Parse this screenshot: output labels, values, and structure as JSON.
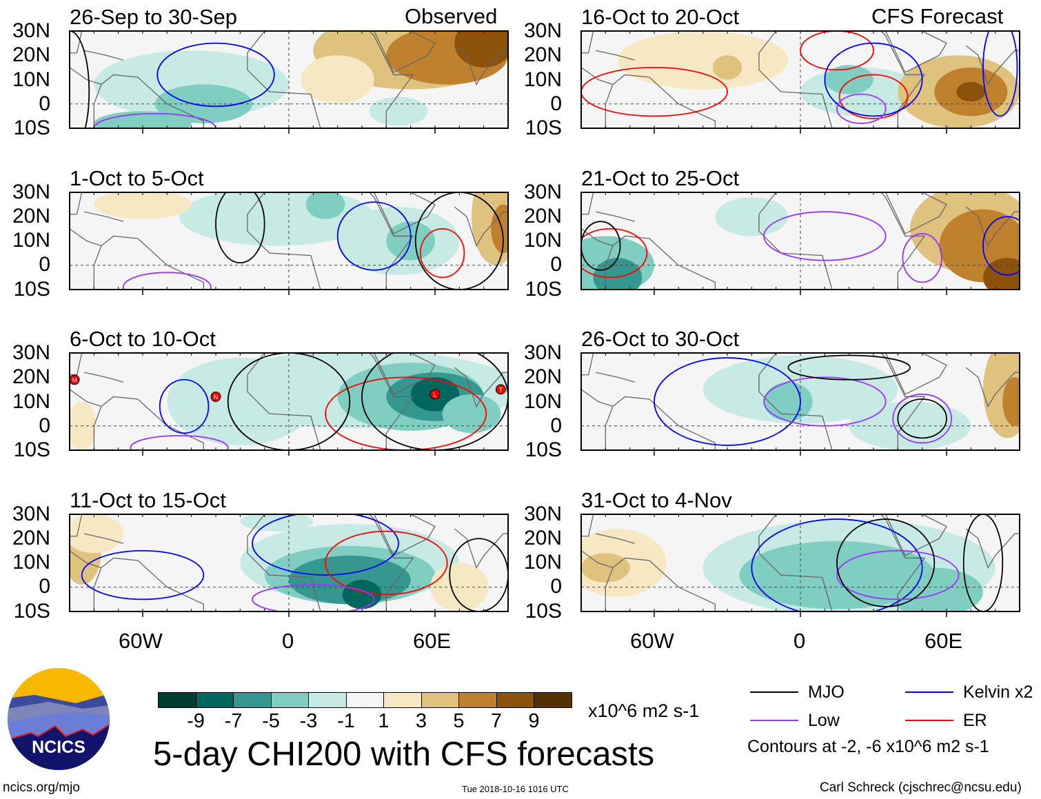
{
  "header": {
    "observed_label": "Observed",
    "forecast_label": "CFS Forecast"
  },
  "chart_data": {
    "type": "heatmap",
    "title": "5-day CHI200 with CFS forecasts",
    "units": "x10^6 m2 s-1",
    "lat_ticks": [
      "30N",
      "20N",
      "10N",
      "0",
      "10S"
    ],
    "lon_ticks": [
      "60W",
      "0",
      "60E"
    ],
    "lon_range": [
      -90,
      90
    ],
    "lat_range": [
      -10,
      30
    ],
    "colorbar": {
      "labels": [
        "-9",
        "-7",
        "-5",
        "-3",
        "-1",
        "1",
        "3",
        "5",
        "7",
        "9"
      ],
      "colors": [
        "#003c30",
        "#01665e",
        "#35978f",
        "#80cdc1",
        "#c7eae5",
        "#f5f5f5",
        "#f6e8c3",
        "#dfc27d",
        "#bf812d",
        "#8c510a",
        "#543005"
      ]
    },
    "panels": [
      {
        "title": "26-Sep to 30-Sep",
        "col": 0,
        "row": 0,
        "anoms": [
          [
            -40,
            8,
            40,
            14,
            -2
          ],
          [
            -35,
            0,
            20,
            8,
            -4
          ],
          [
            -60,
            -8,
            20,
            5,
            -4
          ],
          [
            50,
            22,
            40,
            16,
            4
          ],
          [
            65,
            20,
            25,
            12,
            6
          ],
          [
            80,
            25,
            12,
            10,
            8
          ],
          [
            20,
            10,
            15,
            10,
            2
          ],
          [
            45,
            -3,
            12,
            6,
            -2
          ]
        ],
        "contours": [
          [
            "Kelvin",
            -30,
            12,
            24,
            13
          ],
          [
            "Low",
            -55,
            -10,
            25,
            6
          ],
          [
            "MJO",
            -90,
            5,
            8,
            25
          ]
        ],
        "storms": []
      },
      {
        "title": "1-Oct to 5-Oct",
        "col": 0,
        "row": 1,
        "anoms": [
          [
            -5,
            20,
            40,
            12,
            -2
          ],
          [
            15,
            25,
            8,
            6,
            -4
          ],
          [
            45,
            10,
            25,
            14,
            -2
          ],
          [
            50,
            10,
            10,
            8,
            -4
          ],
          [
            85,
            20,
            10,
            20,
            4
          ],
          [
            88,
            15,
            5,
            10,
            6
          ],
          [
            -60,
            25,
            20,
            6,
            2
          ]
        ],
        "contours": [
          [
            "Kelvin",
            35,
            12,
            15,
            14
          ],
          [
            "ER",
            63,
            5,
            9,
            10
          ],
          [
            "MJO",
            -20,
            17,
            10,
            16
          ],
          [
            "MJO",
            70,
            10,
            18,
            20
          ],
          [
            "Low",
            -50,
            -9,
            18,
            6
          ]
        ],
        "storms": []
      },
      {
        "title": "6-Oct to 10-Oct",
        "col": 0,
        "row": 2,
        "anoms": [
          [
            -20,
            10,
            30,
            18,
            -2
          ],
          [
            30,
            15,
            65,
            16,
            -2
          ],
          [
            50,
            12,
            30,
            14,
            -4
          ],
          [
            60,
            12,
            20,
            10,
            -6
          ],
          [
            60,
            13,
            10,
            7,
            -8
          ],
          [
            75,
            5,
            12,
            8,
            -4
          ],
          [
            -85,
            0,
            6,
            10,
            2
          ]
        ],
        "contours": [
          [
            "Kelvin",
            -43,
            8,
            10,
            11
          ],
          [
            "ER",
            48,
            5,
            33,
            15
          ],
          [
            "MJO",
            0,
            10,
            25,
            20
          ],
          [
            "MJO",
            60,
            12,
            30,
            22
          ],
          [
            "Low",
            -45,
            -9,
            20,
            5
          ]
        ],
        "storms": [
          [
            "M",
            -88,
            19
          ],
          [
            "N",
            -30,
            12
          ],
          [
            "L",
            60,
            13
          ],
          [
            "T",
            87,
            15
          ]
        ]
      },
      {
        "title": "11-Oct to 15-Oct",
        "col": 0,
        "row": 3,
        "anoms": [
          [
            25,
            10,
            45,
            16,
            -2
          ],
          [
            25,
            5,
            35,
            12,
            -4
          ],
          [
            25,
            3,
            25,
            10,
            -6
          ],
          [
            30,
            -3,
            8,
            6,
            -8
          ],
          [
            -85,
            15,
            8,
            14,
            4
          ],
          [
            -80,
            22,
            12,
            8,
            2
          ],
          [
            70,
            0,
            12,
            10,
            2
          ],
          [
            -5,
            27,
            15,
            4,
            -2
          ]
        ],
        "contours": [
          [
            "Kelvin",
            15,
            18,
            30,
            13
          ],
          [
            "Kelvin",
            -60,
            5,
            25,
            10
          ],
          [
            "ER",
            40,
            10,
            25,
            13
          ],
          [
            "Low",
            10,
            -5,
            25,
            6
          ],
          [
            "MJO",
            78,
            5,
            12,
            15
          ]
        ],
        "storms": []
      },
      {
        "title": "16-Oct to 20-Oct",
        "col": 1,
        "row": 0,
        "anoms": [
          [
            -40,
            18,
            35,
            12,
            2
          ],
          [
            -30,
            15,
            6,
            5,
            4
          ],
          [
            25,
            5,
            25,
            10,
            -2
          ],
          [
            20,
            10,
            10,
            6,
            -4
          ],
          [
            65,
            5,
            25,
            15,
            4
          ],
          [
            70,
            5,
            15,
            10,
            6
          ],
          [
            70,
            5,
            6,
            4,
            8
          ]
        ],
        "contours": [
          [
            "ER",
            -60,
            5,
            30,
            10
          ],
          [
            "ER",
            15,
            22,
            15,
            8
          ],
          [
            "ER",
            30,
            3,
            14,
            9
          ],
          [
            "Kelvin",
            30,
            10,
            20,
            15
          ],
          [
            "Low",
            25,
            -2,
            10,
            6
          ],
          [
            "Kelvin",
            82,
            15,
            7,
            20
          ]
        ],
        "storms": []
      },
      {
        "title": "21-Oct to 25-Oct",
        "col": 1,
        "row": 1,
        "anoms": [
          [
            -80,
            0,
            20,
            12,
            -4
          ],
          [
            -75,
            -5,
            10,
            8,
            -6
          ],
          [
            -20,
            20,
            15,
            8,
            -2
          ],
          [
            70,
            15,
            25,
            18,
            4
          ],
          [
            75,
            8,
            18,
            15,
            6
          ],
          [
            85,
            -5,
            10,
            8,
            8
          ]
        ],
        "contours": [
          [
            "ER",
            -78,
            5,
            15,
            10
          ],
          [
            "Kelvin",
            85,
            8,
            10,
            12
          ],
          [
            "Low",
            10,
            12,
            25,
            10
          ],
          [
            "Low",
            50,
            3,
            8,
            10
          ],
          [
            "MJO",
            -82,
            8,
            8,
            10
          ]
        ],
        "storms": []
      },
      {
        "title": "26-Oct to 30-Oct",
        "col": 1,
        "row": 2,
        "anoms": [
          [
            0,
            15,
            40,
            14,
            -2
          ],
          [
            -5,
            10,
            10,
            8,
            -4
          ],
          [
            45,
            0,
            25,
            10,
            -2
          ],
          [
            85,
            15,
            10,
            20,
            4
          ],
          [
            88,
            10,
            5,
            10,
            6
          ]
        ],
        "contours": [
          [
            "Kelvin",
            -30,
            10,
            30,
            18
          ],
          [
            "Low",
            10,
            10,
            25,
            10
          ],
          [
            "Low",
            50,
            3,
            12,
            10
          ],
          [
            "MJO",
            50,
            3,
            10,
            8
          ],
          [
            "MJO",
            20,
            24,
            25,
            5
          ]
        ],
        "storms": []
      },
      {
        "title": "31-Oct to 4-Nov",
        "col": 1,
        "row": 3,
        "anoms": [
          [
            20,
            8,
            60,
            20,
            -2
          ],
          [
            15,
            5,
            40,
            14,
            -4
          ],
          [
            55,
            -2,
            20,
            10,
            -4
          ],
          [
            -75,
            10,
            20,
            14,
            2
          ],
          [
            -80,
            8,
            10,
            6,
            4
          ]
        ],
        "contours": [
          [
            "Kelvin",
            15,
            8,
            35,
            20
          ],
          [
            "Low",
            40,
            5,
            25,
            10
          ],
          [
            "MJO",
            35,
            10,
            20,
            18
          ],
          [
            "MJO",
            75,
            10,
            8,
            20
          ]
        ],
        "storms": []
      }
    ]
  },
  "legend": {
    "items": [
      {
        "label": "MJO",
        "color": "#000000"
      },
      {
        "label": "Low",
        "color": "#9933ff"
      },
      {
        "label": "Kelvin x2",
        "color": "#0000ff"
      },
      {
        "label": "ER",
        "color": "#ff0000"
      }
    ],
    "contours_note": "Contours at -2, -6 x10^6 m2 s-1"
  },
  "logo": {
    "text": "NCICS"
  },
  "footer": {
    "url": "ncics.org/mjo",
    "timestamp": "Tue 2018-10-16 1016 UTC",
    "author": "Carl Schreck (cjschrec@ncsu.edu)"
  }
}
